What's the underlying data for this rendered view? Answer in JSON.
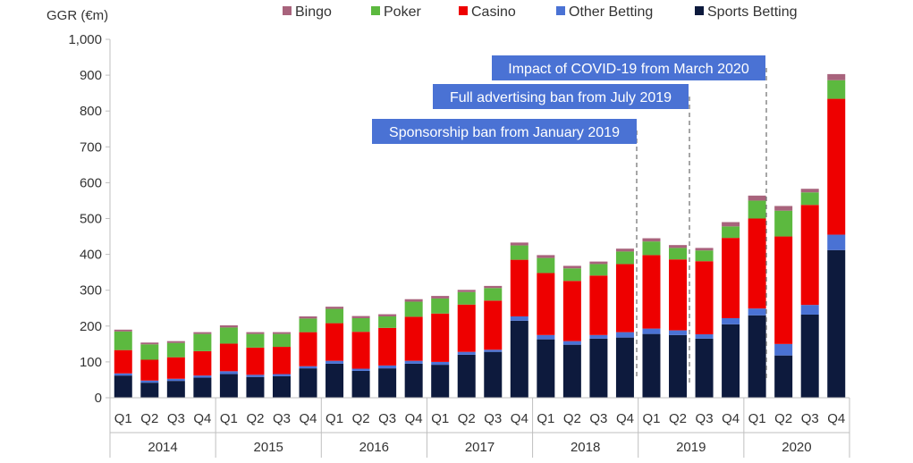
{
  "chart_data": {
    "type": "bar",
    "stacked": true,
    "ylabel": "GGR (€m)",
    "ylim": [
      0,
      1000
    ],
    "yticks": [
      0,
      100,
      200,
      300,
      400,
      500,
      600,
      700,
      800,
      900,
      1000
    ],
    "ytick_labels": [
      "0",
      "100",
      "200",
      "300",
      "400",
      "500",
      "600",
      "700",
      "800",
      "900",
      "1,000"
    ],
    "legend_position": "top",
    "quarters": [
      "Q1",
      "Q2",
      "Q3",
      "Q4",
      "Q1",
      "Q2",
      "Q3",
      "Q4",
      "Q1",
      "Q2",
      "Q3",
      "Q4",
      "Q1",
      "Q2",
      "Q3",
      "Q4",
      "Q1",
      "Q2",
      "Q3",
      "Q4",
      "Q1",
      "Q2",
      "Q3",
      "Q4",
      "Q1",
      "Q2",
      "Q3",
      "Q4"
    ],
    "years": [
      "2014",
      "2015",
      "2016",
      "2017",
      "2018",
      "2019",
      "2020"
    ],
    "series": [
      {
        "name": "Sports Betting",
        "color": "#0d1a3d",
        "values": [
          62,
          42,
          47,
          56,
          66,
          58,
          60,
          82,
          95,
          75,
          82,
          95,
          92,
          120,
          128,
          215,
          163,
          148,
          165,
          168,
          178,
          175,
          165,
          205,
          230,
          118,
          232,
          412
        ]
      },
      {
        "name": "Other Betting",
        "color": "#4a72d4",
        "values": [
          6,
          6,
          6,
          6,
          8,
          6,
          6,
          6,
          8,
          6,
          8,
          8,
          8,
          8,
          6,
          12,
          12,
          10,
          10,
          15,
          15,
          13,
          12,
          17,
          19,
          32,
          27,
          43
        ]
      },
      {
        "name": "Casino",
        "color": "#ee0000",
        "values": [
          65,
          58,
          60,
          68,
          77,
          76,
          76,
          95,
          105,
          103,
          105,
          123,
          135,
          132,
          137,
          158,
          173,
          168,
          166,
          190,
          205,
          198,
          204,
          224,
          251,
          300,
          279,
          379
        ]
      },
      {
        "name": "Poker",
        "color": "#5cb93f",
        "values": [
          52,
          43,
          40,
          48,
          45,
          38,
          36,
          38,
          40,
          38,
          32,
          42,
          42,
          35,
          35,
          40,
          42,
          35,
          32,
          35,
          38,
          32,
          30,
          32,
          50,
          72,
          35,
          52
        ]
      },
      {
        "name": "Bingo",
        "color": "#a8637c",
        "values": [
          5,
          5,
          5,
          5,
          6,
          5,
          5,
          6,
          6,
          6,
          6,
          7,
          7,
          6,
          6,
          8,
          8,
          7,
          7,
          8,
          9,
          8,
          7,
          12,
          14,
          13,
          10,
          17
        ]
      }
    ],
    "legend_order": [
      "Bingo",
      "Poker",
      "Casino",
      "Other Betting",
      "Sports Betting"
    ],
    "annotations": [
      {
        "text": "Impact of COVID-19 from March 2020",
        "at_bar": 24,
        "box_color": "#4a72d4"
      },
      {
        "text": "Full advertising ban from July 2019",
        "at_bar": 21,
        "box_color": "#4a72d4"
      },
      {
        "text": "Sponsorship ban from January 2019",
        "at_bar": 20,
        "box_color": "#4a72d4"
      }
    ]
  }
}
